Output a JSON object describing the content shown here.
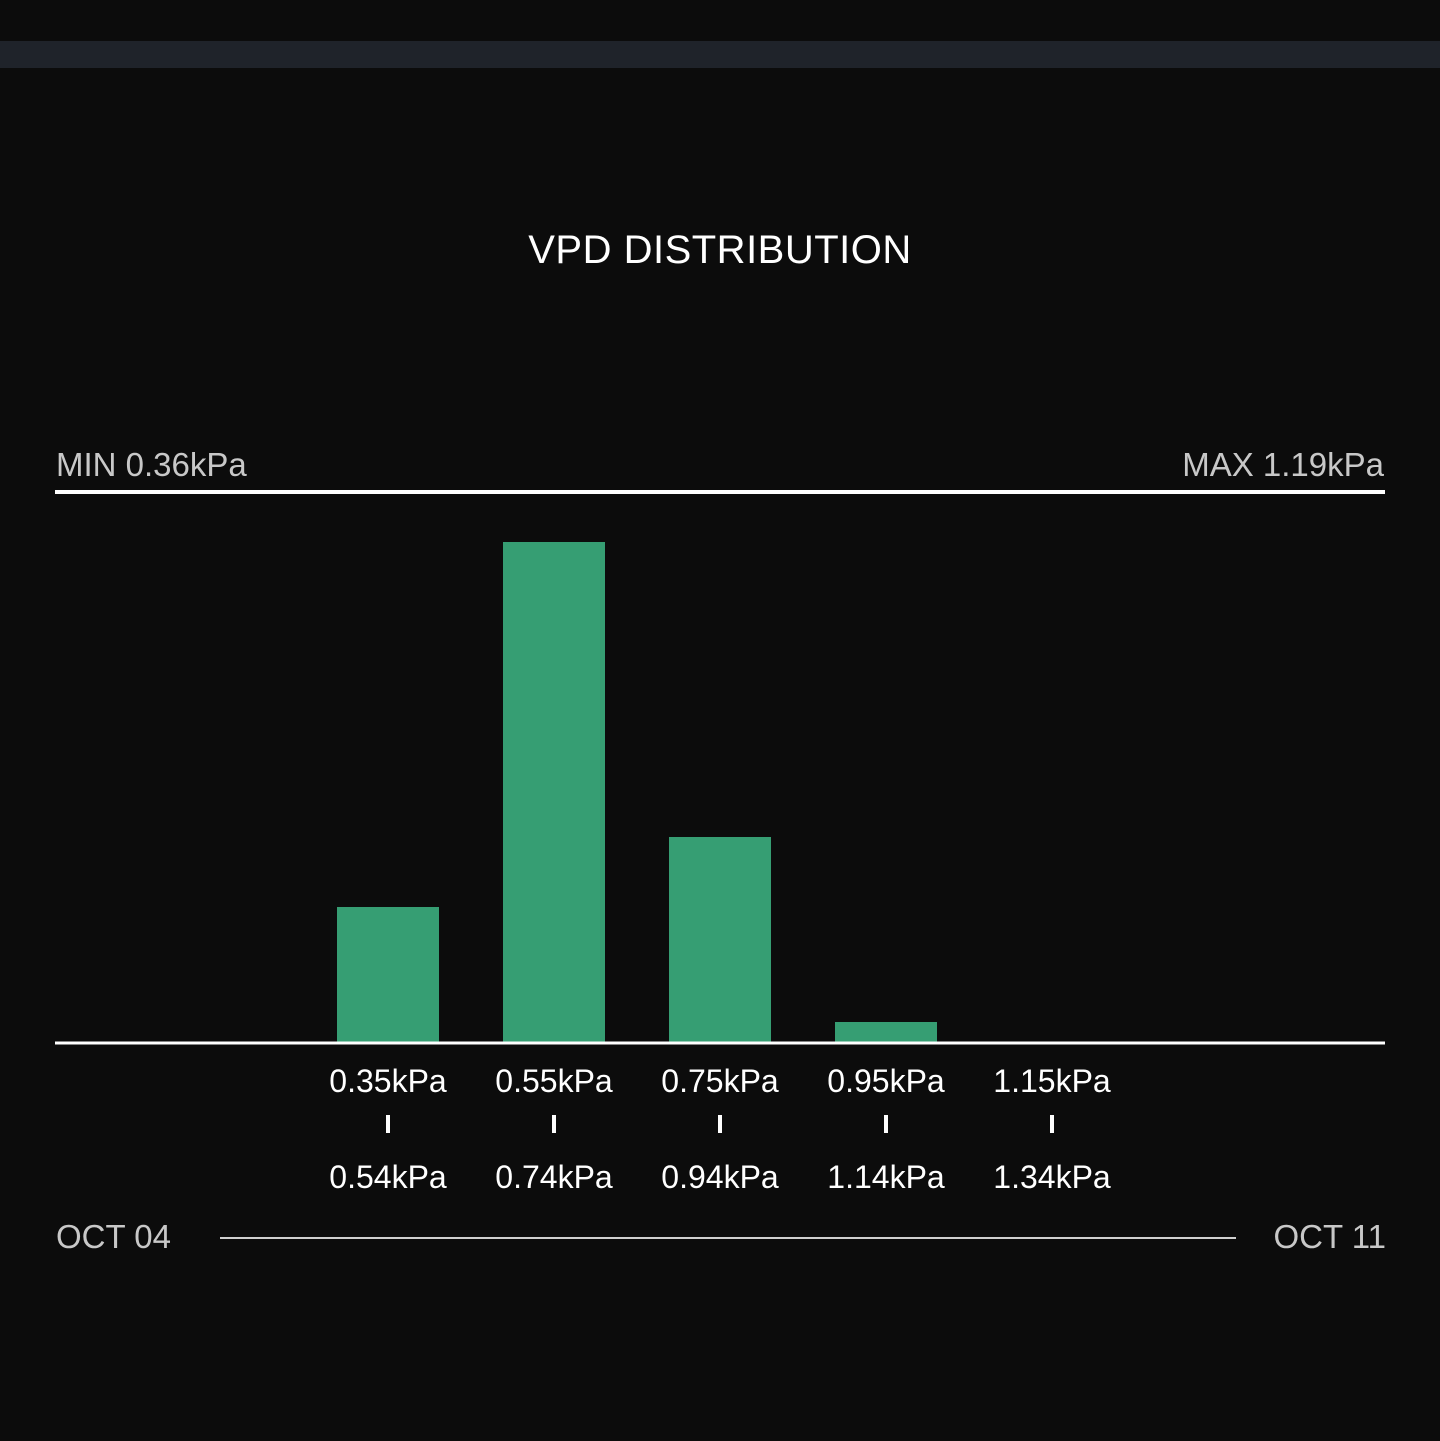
{
  "title": "VPD DISTRIBUTION",
  "range": {
    "min_label": "MIN 0.36kPa",
    "max_label": "MAX 1.19kPa"
  },
  "date_range": {
    "start": "OCT 04",
    "end": "OCT 11"
  },
  "colors": {
    "bar": "#369e73",
    "background": "#0c0c0c"
  },
  "chart_data": {
    "type": "bar",
    "title": "VPD DISTRIBUTION",
    "categories": [
      "0.35kPa - 0.54kPa",
      "0.55kPa - 0.74kPa",
      "0.75kPa - 0.94kPa",
      "0.95kPa - 1.14kPa",
      "1.15kPa - 1.34kPa"
    ],
    "bins": [
      {
        "from": "0.35kPa",
        "to": "0.54kPa"
      },
      {
        "from": "0.55kPa",
        "to": "0.74kPa"
      },
      {
        "from": "0.75kPa",
        "to": "0.94kPa"
      },
      {
        "from": "0.95kPa",
        "to": "1.14kPa"
      },
      {
        "from": "1.15kPa",
        "to": "1.34kPa"
      }
    ],
    "values": [
      27,
      100,
      41,
      4,
      0
    ],
    "ylim": [
      0,
      100
    ],
    "xlabel": "",
    "ylabel": "",
    "grid": false,
    "legend": "none"
  }
}
